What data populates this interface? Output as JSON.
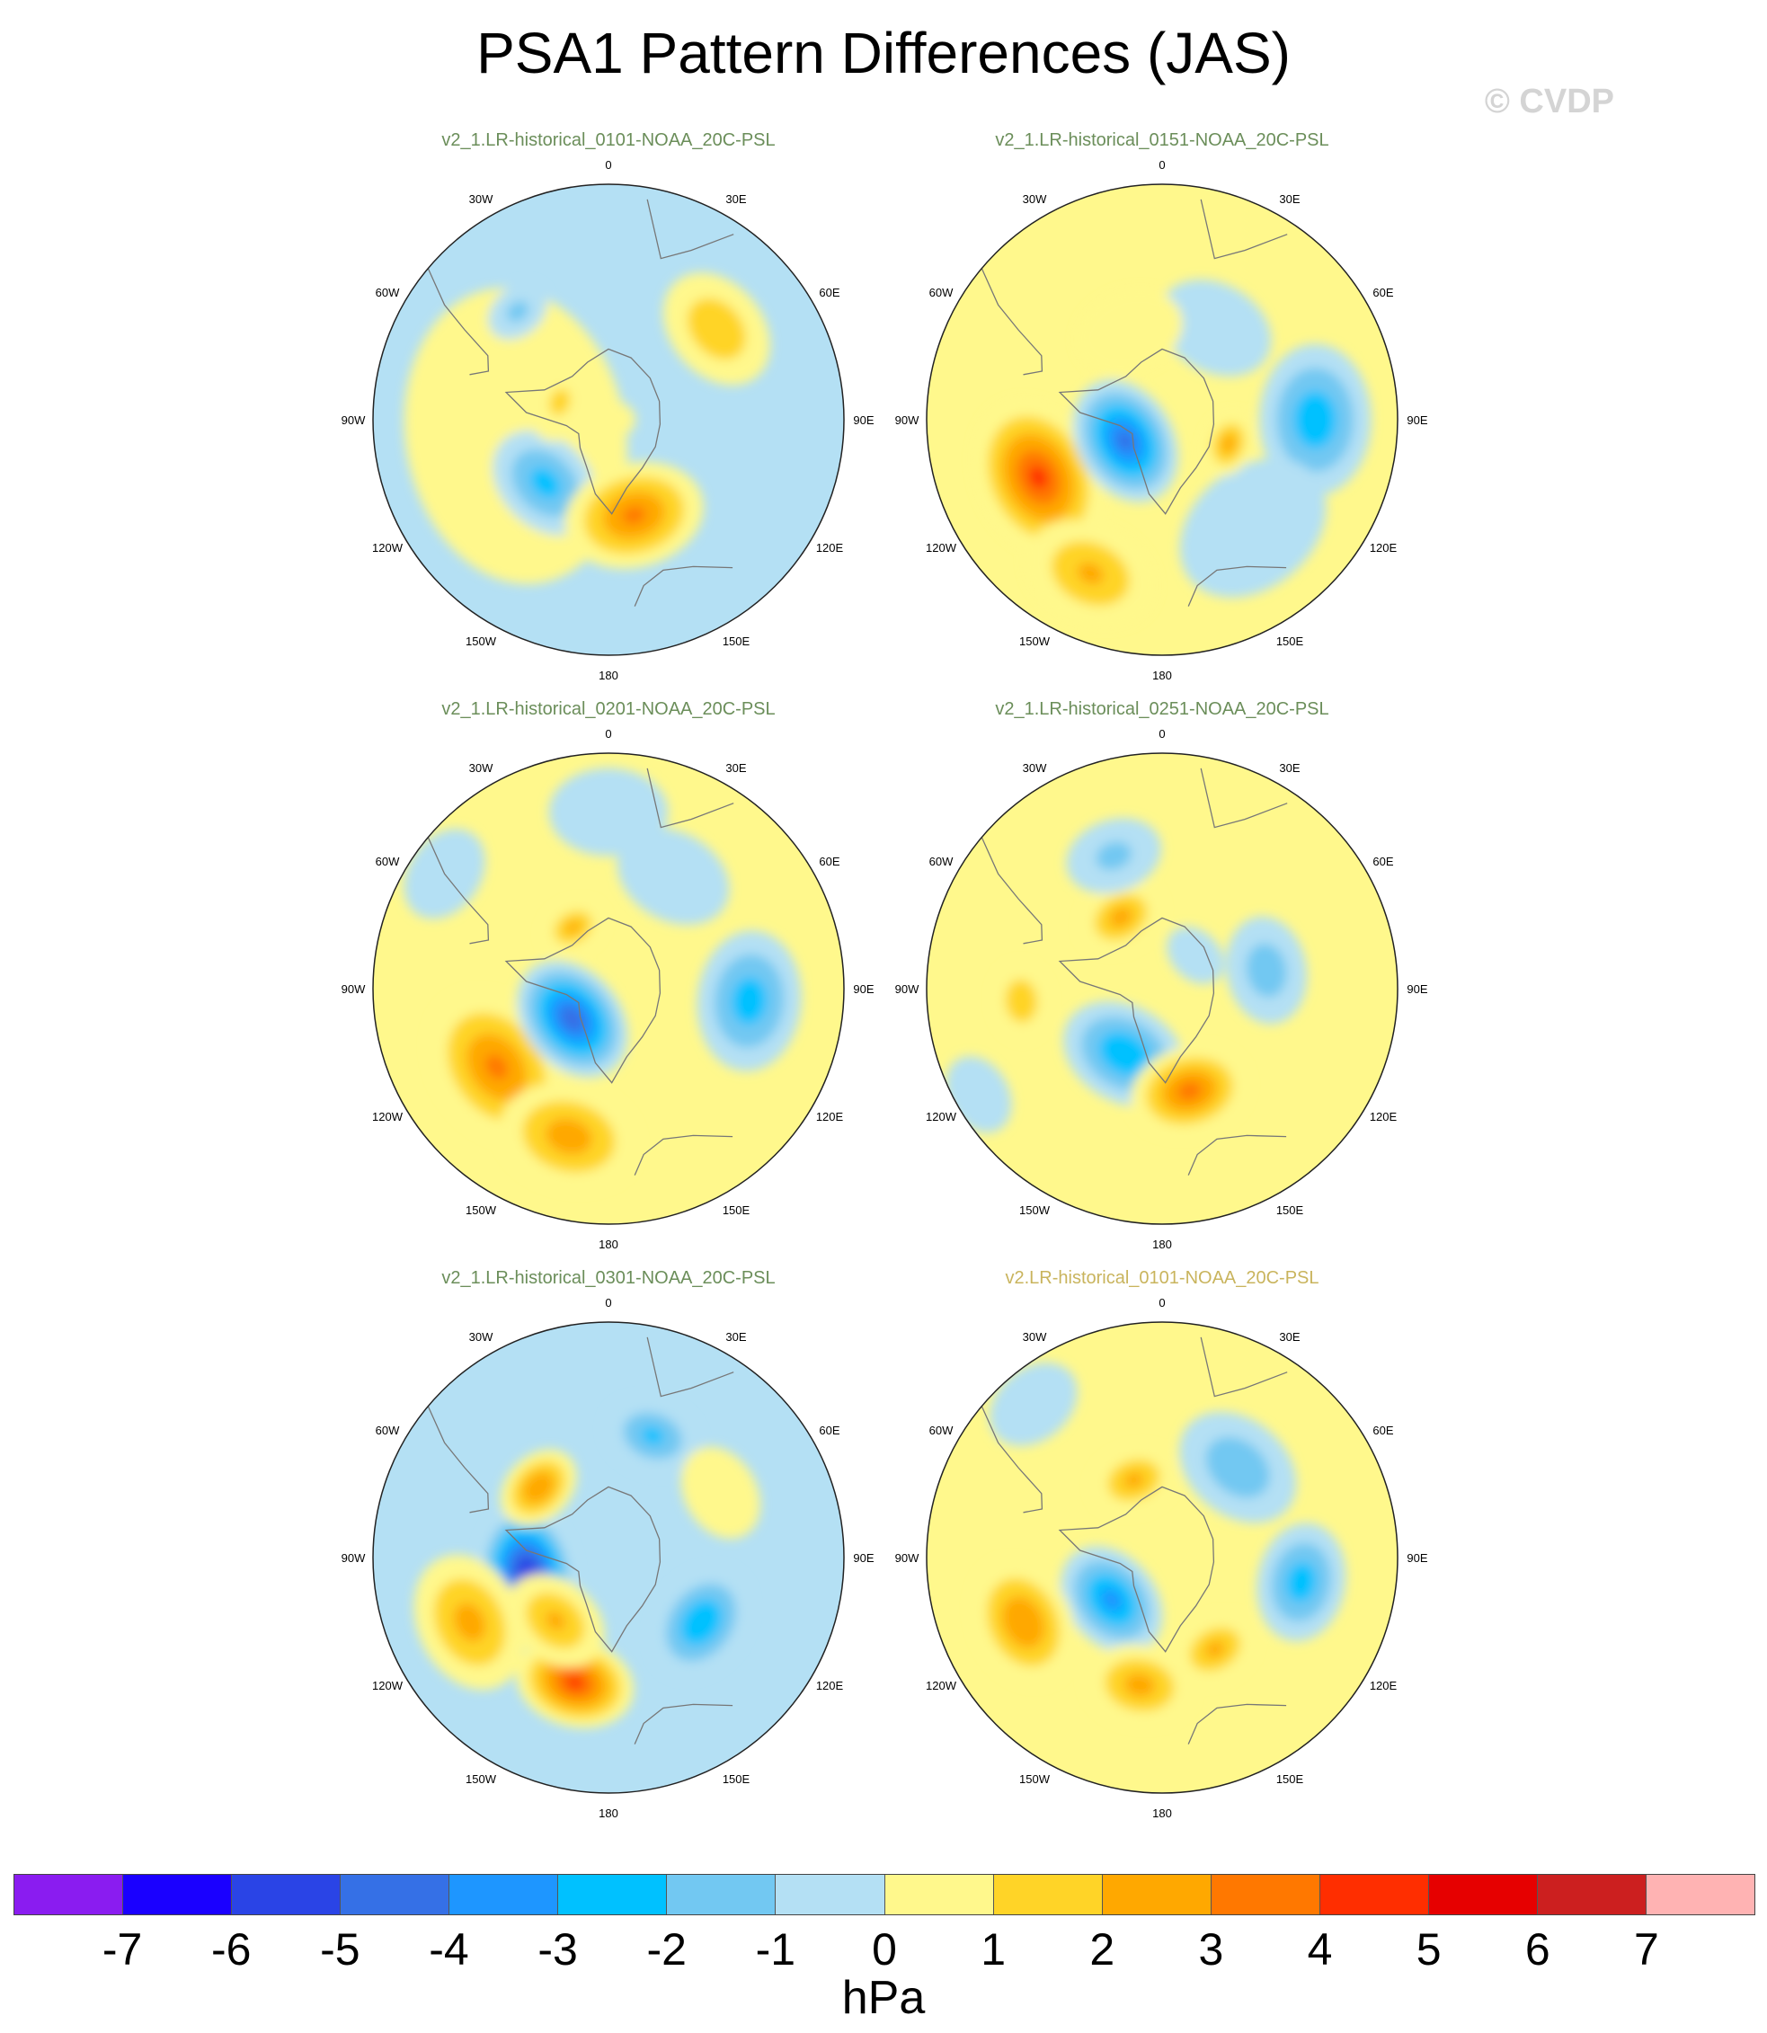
{
  "chart_data": {
    "type": "heatmap",
    "title": "PSA1 Pattern Differences (JAS)",
    "copyright": "© CVDP",
    "units": "hPa",
    "colorbar": {
      "levels": [
        "-7",
        "-6",
        "-5",
        "-4",
        "-3",
        "-2",
        "-1",
        "0",
        "1",
        "2",
        "3",
        "4",
        "5",
        "6",
        "7"
      ],
      "colors": [
        "#8a1cf0",
        "#1a00ff",
        "#2a44e6",
        "#3570e6",
        "#1e96ff",
        "#00c1ff",
        "#72c8f2",
        "#b4e0f4",
        "#fff88c",
        "#ffd427",
        "#ffa800",
        "#ff7800",
        "#ff2e00",
        "#e60000",
        "#cc1f1f",
        "#ffb3b3"
      ]
    },
    "lon_labels": [
      "0",
      "30E",
      "60E",
      "90E",
      "120E",
      "150E",
      "180",
      "150W",
      "120W",
      "90W",
      "60W",
      "30W"
    ],
    "panels": [
      {
        "title": "v2_1.LR-historical_0101-NOAA_20C-PSL",
        "base": "#b4e0f4",
        "blobs": [
          {
            "lon": -100,
            "r": 0.4,
            "v": 1,
            "s": 0.55
          },
          {
            "lon": -135,
            "r": 0.38,
            "v": -2.8,
            "s": 0.22
          },
          {
            "lon": 165,
            "r": 0.42,
            "v": 3.6,
            "s": 0.26
          },
          {
            "lon": 50,
            "r": 0.6,
            "v": 2.2,
            "s": 0.23
          },
          {
            "lon": -40,
            "r": 0.6,
            "v": -1.6,
            "s": 0.12
          },
          {
            "lon": -70,
            "r": 0.22,
            "v": 1.5,
            "s": 0.15
          },
          {
            "lon": 0,
            "r": 0.0,
            "v": 0.8,
            "s": 0.1
          }
        ]
      },
      {
        "title": "v2_1.LR-historical_0151-NOAA_20C-PSL",
        "base": "#fff88c",
        "blobs": [
          {
            "lon": -115,
            "r": 0.58,
            "v": 4.6,
            "s": 0.3
          },
          {
            "lon": -155,
            "r": 0.72,
            "v": 2.5,
            "s": 0.25
          },
          {
            "lon": -120,
            "r": 0.18,
            "v": -4.8,
            "s": 0.24
          },
          {
            "lon": 90,
            "r": 0.65,
            "v": -3.2,
            "s": 0.28
          },
          {
            "lon": 140,
            "r": 0.6,
            "v": -1.2,
            "s": 0.3
          },
          {
            "lon": 30,
            "r": 0.45,
            "v": -1.3,
            "s": 0.22
          },
          {
            "lon": 110,
            "r": 0.3,
            "v": 2.8,
            "s": 0.12
          },
          {
            "lon": -20,
            "r": 0.4,
            "v": 1.2,
            "s": 0.2
          }
        ]
      },
      {
        "title": "v2_1.LR-historical_0201-NOAA_20C-PSL",
        "base": "#fff88c",
        "blobs": [
          {
            "lon": -125,
            "r": 0.58,
            "v": 3.6,
            "s": 0.3
          },
          {
            "lon": -165,
            "r": 0.65,
            "v": 3.0,
            "s": 0.26
          },
          {
            "lon": -130,
            "r": 0.2,
            "v": -5.2,
            "s": 0.24
          },
          {
            "lon": 95,
            "r": 0.6,
            "v": -3.0,
            "s": 0.26
          },
          {
            "lon": 30,
            "r": 0.55,
            "v": -1.4,
            "s": 0.22
          },
          {
            "lon": 0,
            "r": 0.75,
            "v": -1.0,
            "s": 0.22
          },
          {
            "lon": -30,
            "r": 0.3,
            "v": 2.6,
            "s": 0.12
          },
          {
            "lon": -55,
            "r": 0.85,
            "v": -1.0,
            "s": 0.18
          }
        ]
      },
      {
        "title": "v2_1.LR-historical_0251-NOAA_20C-PSL",
        "base": "#fff88c",
        "blobs": [
          {
            "lon": -150,
            "r": 0.32,
            "v": -3.4,
            "s": 0.24
          },
          {
            "lon": 165,
            "r": 0.45,
            "v": 3.8,
            "s": 0.22
          },
          {
            "lon": -95,
            "r": 0.6,
            "v": 2.3,
            "s": 0.14
          },
          {
            "lon": -30,
            "r": 0.35,
            "v": 2.8,
            "s": 0.16
          },
          {
            "lon": -20,
            "r": 0.6,
            "v": -1.6,
            "s": 0.18
          },
          {
            "lon": 80,
            "r": 0.45,
            "v": -2.0,
            "s": 0.2
          },
          {
            "lon": 45,
            "r": 0.2,
            "v": -1.2,
            "s": 0.12
          },
          {
            "lon": -120,
            "r": 0.9,
            "v": -0.8,
            "s": 0.15
          }
        ]
      },
      {
        "title": "v2_1.LR-historical_0301-NOAA_20C-PSL",
        "base": "#b4e0f4",
        "blobs": [
          {
            "lon": -100,
            "r": 0.35,
            "v": -6.4,
            "s": 0.24
          },
          {
            "lon": -165,
            "r": 0.55,
            "v": 4.6,
            "s": 0.22
          },
          {
            "lon": -45,
            "r": 0.42,
            "v": 3.4,
            "s": 0.16
          },
          {
            "lon": -115,
            "r": 0.65,
            "v": 2.8,
            "s": 0.26
          },
          {
            "lon": 125,
            "r": 0.48,
            "v": -3.4,
            "s": 0.22
          },
          {
            "lon": 20,
            "r": 0.55,
            "v": -2.6,
            "s": 0.18
          },
          {
            "lon": 60,
            "r": 0.55,
            "v": 1.4,
            "s": 0.18
          },
          {
            "lon": -140,
            "r": 0.35,
            "v": 2.5,
            "s": 0.2
          }
        ]
      },
      {
        "title": "v2.LR-historical_0101-NOAA_20C-PSL",
        "base": "#fff88c",
        "alt": true,
        "blobs": [
          {
            "lon": -130,
            "r": 0.28,
            "v": -3.8,
            "s": 0.22
          },
          {
            "lon": -115,
            "r": 0.65,
            "v": 3.4,
            "s": 0.24
          },
          {
            "lon": -170,
            "r": 0.55,
            "v": 2.8,
            "s": 0.2
          },
          {
            "lon": 100,
            "r": 0.6,
            "v": -3.0,
            "s": 0.22
          },
          {
            "lon": 40,
            "r": 0.5,
            "v": -2.2,
            "s": 0.24
          },
          {
            "lon": -20,
            "r": 0.35,
            "v": 2.6,
            "s": 0.16
          },
          {
            "lon": 150,
            "r": 0.45,
            "v": 2.6,
            "s": 0.16
          },
          {
            "lon": -40,
            "r": 0.85,
            "v": -1.0,
            "s": 0.18
          }
        ]
      }
    ]
  }
}
